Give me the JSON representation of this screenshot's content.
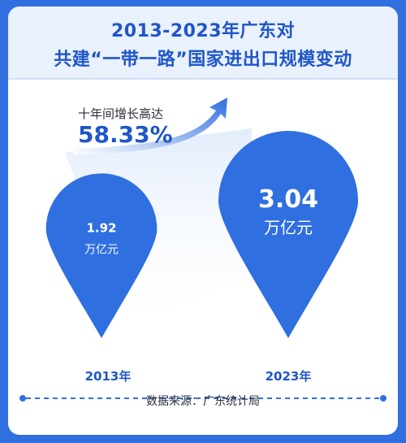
{
  "title": {
    "line1": "2013-2023年广东对",
    "line2": "共建“一带一路”国家进出口规模变动"
  },
  "growth": {
    "label": "十年间增长高达",
    "value": "58.33%"
  },
  "footer": {
    "source": "数据来源：广东统计局"
  },
  "colors": {
    "primary": "#2f6fe0",
    "drop": "#2f6fe0",
    "light": "#e9f1fd"
  },
  "chart_data": {
    "type": "bar",
    "categories": [
      "2013年",
      "2023年"
    ],
    "series": [
      {
        "values": [
          1.92,
          3.04
        ]
      }
    ],
    "value_labels": [
      "1.92",
      "3.04"
    ],
    "unit": "万亿元",
    "annotation": "十年间增长高达 58.33%"
  }
}
